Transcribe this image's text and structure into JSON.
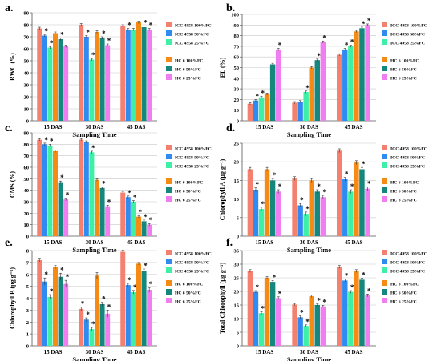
{
  "colors": {
    "ICC4958_100": "#f4816f",
    "ICC4958_50": "#2f8bf0",
    "ICC4958_25": "#3df0a6",
    "HC6_100": "#f58a14",
    "HC6_50": "#14877e",
    "HC6_25": "#f07ef0"
  },
  "chart_data": [
    {
      "id": "a",
      "type": "bar",
      "panel_label": "a.",
      "xlabel": "Sampling Time",
      "ylabel": "RWC (%)",
      "ylim": [
        0,
        90
      ],
      "yticks": [
        0,
        10,
        20,
        30,
        40,
        50,
        60,
        70,
        80,
        90
      ],
      "categories": [
        "15 DAS",
        "30 DAS",
        "45 DAS"
      ],
      "legend": [
        [
          "ICC 4958 100%FC",
          "ICC 4958 50%FC",
          "ICC 4958 25%FC"
        ],
        [
          "HC 6 100%FC",
          "HC 6 50%FC",
          "HC 6 25%FC"
        ]
      ],
      "series": [
        {
          "name": "ICC 4958 100%FC",
          "color_key": "ICC4958_100",
          "values": [
            77,
            80,
            79
          ],
          "err": [
            1,
            1,
            1
          ],
          "star": [
            false,
            false,
            false
          ]
        },
        {
          "name": "ICC 4958 50%FC",
          "color_key": "ICC4958_50",
          "values": [
            71,
            70,
            76
          ],
          "err": [
            1,
            1,
            1
          ],
          "star": [
            true,
            true,
            true
          ]
        },
        {
          "name": "ICC 4958 25%FC",
          "color_key": "ICC4958_25",
          "values": [
            61,
            51,
            76
          ],
          "err": [
            1,
            1,
            1
          ],
          "star": [
            true,
            true,
            false
          ]
        },
        {
          "name": "HC 6 100%FC",
          "color_key": "HC6_100",
          "values": [
            73,
            74,
            82
          ],
          "err": [
            1,
            1,
            1
          ],
          "star": [
            false,
            false,
            false
          ]
        },
        {
          "name": "HC 6 50%FC",
          "color_key": "HC6_50",
          "values": [
            68,
            69,
            78
          ],
          "err": [
            1,
            1,
            1
          ],
          "star": [
            true,
            true,
            true
          ]
        },
        {
          "name": "HC 6 25%FC",
          "color_key": "HC6_25",
          "values": [
            62,
            63,
            76
          ],
          "err": [
            1,
            1,
            1
          ],
          "star": [
            false,
            true,
            true
          ]
        }
      ]
    },
    {
      "id": "b",
      "type": "bar",
      "panel_label": "b.",
      "xlabel": "Sampling Time",
      "ylabel": "EL (%)",
      "ylim": [
        0,
        100
      ],
      "yticks": [
        0,
        10,
        20,
        30,
        40,
        50,
        60,
        70,
        80,
        90,
        100
      ],
      "categories": [
        "15 DAS",
        "30 DAS",
        "45 DAS"
      ],
      "legend": [
        [
          "ICC 4958 100%FC",
          "ICC 4958 50%FC",
          "ICC 4958 25%FC"
        ],
        [
          "HC 6 100%FC",
          "HC 6 50%FC",
          "HC 6 25%FC"
        ]
      ],
      "series": [
        {
          "name": "ICC 4958 100%FC",
          "color_key": "ICC4958_100",
          "values": [
            16,
            17,
            62
          ],
          "err": [
            1,
            1,
            1
          ],
          "star": [
            false,
            false,
            false
          ]
        },
        {
          "name": "ICC 4958 50%FC",
          "color_key": "ICC4958_50",
          "values": [
            19,
            18,
            67
          ],
          "err": [
            1,
            1,
            1
          ],
          "star": [
            true,
            false,
            true
          ]
        },
        {
          "name": "ICC 4958 25%FC",
          "color_key": "ICC4958_25",
          "values": [
            22,
            27,
            70
          ],
          "err": [
            1,
            1,
            1
          ],
          "star": [
            true,
            true,
            true
          ]
        },
        {
          "name": "HC 6 100%FC",
          "color_key": "HC6_100",
          "values": [
            25,
            50,
            84
          ],
          "err": [
            1,
            1,
            1
          ],
          "star": [
            false,
            false,
            false
          ]
        },
        {
          "name": "HC 6 50%FC",
          "color_key": "HC6_50",
          "values": [
            53,
            57,
            87
          ],
          "err": [
            1,
            1,
            1
          ],
          "star": [
            false,
            true,
            true
          ]
        },
        {
          "name": "HC 6 25%FC",
          "color_key": "HC6_25",
          "values": [
            67,
            74,
            90
          ],
          "err": [
            1,
            1,
            1
          ],
          "star": [
            true,
            true,
            true
          ]
        }
      ]
    },
    {
      "id": "c",
      "type": "bar",
      "panel_label": "c.",
      "xlabel": "Sampling Time",
      "ylabel": "CMS (%)",
      "ylim": [
        0,
        90
      ],
      "yticks": [
        0,
        10,
        20,
        30,
        40,
        50,
        60,
        70,
        80,
        90
      ],
      "categories": [
        "15 DAS",
        "30 DAS",
        "45 DAS"
      ],
      "legend": [
        [
          "ICC 4958 100%FC",
          "ICC 4958 50%FC",
          "ICC 4958 25%FC"
        ],
        [
          "HC 6 100%FC",
          "HC 6 50%FC",
          "HC 6 25%FC"
        ]
      ],
      "series": [
        {
          "name": "ICC 4958 100%FC",
          "color_key": "ICC4958_100",
          "values": [
            84,
            84,
            38
          ],
          "err": [
            1,
            1,
            1
          ],
          "star": [
            false,
            false,
            false
          ]
        },
        {
          "name": "ICC 4958 50%FC",
          "color_key": "ICC4958_50",
          "values": [
            80,
            82,
            34
          ],
          "err": [
            1,
            1,
            1
          ],
          "star": [
            true,
            false,
            true
          ]
        },
        {
          "name": "ICC 4958 25%FC",
          "color_key": "ICC4958_25",
          "values": [
            79,
            73,
            30
          ],
          "err": [
            1,
            1,
            1
          ],
          "star": [
            true,
            true,
            true
          ]
        },
        {
          "name": "HC 6 100%FC",
          "color_key": "HC6_100",
          "values": [
            74,
            49,
            17
          ],
          "err": [
            1,
            1,
            1
          ],
          "star": [
            false,
            false,
            true
          ]
        },
        {
          "name": "HC 6 50%FC",
          "color_key": "HC6_50",
          "values": [
            47,
            42,
            13
          ],
          "err": [
            1,
            1,
            1
          ],
          "star": [
            true,
            true,
            true
          ]
        },
        {
          "name": "HC 6 25%FC",
          "color_key": "HC6_25",
          "values": [
            32,
            26,
            10
          ],
          "err": [
            1,
            1,
            1
          ],
          "star": [
            true,
            true,
            true
          ]
        }
      ]
    },
    {
      "id": "d",
      "type": "bar",
      "panel_label": "d.",
      "xlabel": "Sampling Time",
      "ylabel": "Chlorophyll A (µg g⁻¹)",
      "ylim": [
        0,
        25
      ],
      "yticks": [
        0,
        5,
        10,
        15,
        20,
        25
      ],
      "categories": [
        "15 DAS",
        "30 DAS",
        "45 DAS"
      ],
      "legend": [
        [
          "ICC 4958 100%FC",
          "ICC 4958 50%FC",
          "ICC 4958 25%FC"
        ],
        [
          "HC 6 100%FC",
          "HC 6 50%FC",
          "HC 6 25%FC"
        ]
      ],
      "series": [
        {
          "name": "ICC 4958 100%FC",
          "color_key": "ICC4958_100",
          "values": [
            18.0,
            15.5,
            23.0
          ],
          "err": [
            0.5,
            0.5,
            0.5
          ],
          "star": [
            false,
            false,
            false
          ]
        },
        {
          "name": "ICC 4958 50%FC",
          "color_key": "ICC4958_50",
          "values": [
            12.5,
            8.3,
            15.3
          ],
          "err": [
            0.5,
            0.5,
            0.5
          ],
          "star": [
            true,
            true,
            true
          ]
        },
        {
          "name": "ICC 4958 25%FC",
          "color_key": "ICC4958_25",
          "values": [
            7.3,
            6.0,
            12.0
          ],
          "err": [
            0.5,
            0.5,
            0.5
          ],
          "star": [
            true,
            true,
            true
          ]
        },
        {
          "name": "HC 6 100%FC",
          "color_key": "HC6_100",
          "values": [
            18.0,
            15.0,
            19.8
          ],
          "err": [
            0.5,
            0.5,
            0.5
          ],
          "star": [
            false,
            false,
            false
          ]
        },
        {
          "name": "HC 6 50%FC",
          "color_key": "HC6_50",
          "values": [
            15.0,
            12.0,
            18.0
          ],
          "err": [
            0.5,
            0.5,
            0.5
          ],
          "star": [
            true,
            true,
            true
          ]
        },
        {
          "name": "HC 6 25%FC",
          "color_key": "HC6_25",
          "values": [
            12.0,
            10.5,
            12.8
          ],
          "err": [
            0.5,
            0.5,
            0.5
          ],
          "star": [
            true,
            true,
            true
          ]
        }
      ]
    },
    {
      "id": "e",
      "type": "bar",
      "panel_label": "e.",
      "xlabel": "Sampling Time",
      "ylabel": "Chlorophyll B (µg g⁻¹)",
      "ylim": [
        0,
        8
      ],
      "yticks": [
        0,
        1,
        2,
        3,
        4,
        5,
        6,
        7,
        8
      ],
      "categories": [
        "15 DAS",
        "30 DAS",
        "45 DAS"
      ],
      "legend": [
        [
          "ICC 4958 100%FC",
          "ICC 4958 50%FC",
          "ICC 4958 25%FC"
        ],
        [
          "HC 6 100%FC",
          "HC 6 50%FC",
          "HC 6 25%FC"
        ]
      ],
      "series": [
        {
          "name": "ICC 4958 100%FC",
          "color_key": "ICC4958_100",
          "values": [
            7.2,
            3.1,
            7.9
          ],
          "err": [
            0.15,
            0.15,
            0.15
          ],
          "star": [
            false,
            true,
            false
          ]
        },
        {
          "name": "ICC 4958 50%FC",
          "color_key": "ICC4958_50",
          "values": [
            5.4,
            2.2,
            5.1
          ],
          "err": [
            0.3,
            0.15,
            0.15
          ],
          "star": [
            true,
            true,
            true
          ]
        },
        {
          "name": "ICC 4958 25%FC",
          "color_key": "ICC4958_25",
          "values": [
            4.1,
            1.4,
            4.5
          ],
          "err": [
            0.2,
            0.15,
            0.15
          ],
          "star": [
            true,
            true,
            true
          ]
        },
        {
          "name": "HC 6 100%FC",
          "color_key": "HC6_100",
          "values": [
            6.6,
            5.9,
            6.9
          ],
          "err": [
            0.15,
            0.25,
            0.1
          ],
          "star": [
            false,
            false,
            false
          ]
        },
        {
          "name": "HC 6 50%FC",
          "color_key": "HC6_50",
          "values": [
            5.8,
            3.5,
            6.3
          ],
          "err": [
            0.3,
            0.15,
            0.15
          ],
          "star": [
            true,
            true,
            true
          ]
        },
        {
          "name": "HC 6 25%FC",
          "color_key": "HC6_25",
          "values": [
            5.2,
            2.7,
            4.7
          ],
          "err": [
            0.3,
            0.3,
            0.2
          ],
          "star": [
            true,
            true,
            true
          ]
        }
      ]
    },
    {
      "id": "f",
      "type": "bar",
      "panel_label": "f.",
      "xlabel": "Sampling Time",
      "ylabel": "Total Chlorophyll (µg g⁻¹)",
      "ylim": [
        0,
        35
      ],
      "yticks": [
        0,
        5,
        10,
        15,
        20,
        25,
        30,
        35
      ],
      "categories": [
        "15 DAS",
        "30 DAS",
        "45 DAS"
      ],
      "legend": [
        [
          "ICC 4958 100%FC",
          "ICC 4958 50%FC",
          "ICC 4958 25%FC"
        ],
        [
          "HC 6 100%FC",
          "HC 6 50%FC",
          "HC 6 25%FC"
        ]
      ],
      "series": [
        {
          "name": "ICC 4958 100%FC",
          "color_key": "ICC4958_100",
          "values": [
            27.5,
            15.2,
            29.0
          ],
          "err": [
            0.5,
            0.4,
            0.5
          ],
          "star": [
            false,
            false,
            false
          ]
        },
        {
          "name": "ICC 4958 50%FC",
          "color_key": "ICC4958_50",
          "values": [
            19.8,
            10.5,
            24.0
          ],
          "err": [
            0.5,
            0.5,
            0.5
          ],
          "star": [
            true,
            true,
            true
          ]
        },
        {
          "name": "ICC 4958 25%FC",
          "color_key": "ICC4958_25",
          "values": [
            12.0,
            7.3,
            19.8
          ],
          "err": [
            0.5,
            0.4,
            0.5
          ],
          "star": [
            true,
            true,
            true
          ]
        },
        {
          "name": "HC 6 100%FC",
          "color_key": "HC6_100",
          "values": [
            25.0,
            18.2,
            27.5
          ],
          "err": [
            0.4,
            0.4,
            0.5
          ],
          "star": [
            false,
            false,
            false
          ]
        },
        {
          "name": "HC 6 50%FC",
          "color_key": "HC6_50",
          "values": [
            23.5,
            15.0,
            24.3
          ],
          "err": [
            0.5,
            0.4,
            0.5
          ],
          "star": [
            true,
            true,
            true
          ]
        },
        {
          "name": "HC 6 25%FC",
          "color_key": "HC6_25",
          "values": [
            17.5,
            14.5,
            18.5
          ],
          "err": [
            0.5,
            0.4,
            0.5
          ],
          "star": [
            true,
            true,
            true
          ]
        }
      ]
    }
  ]
}
